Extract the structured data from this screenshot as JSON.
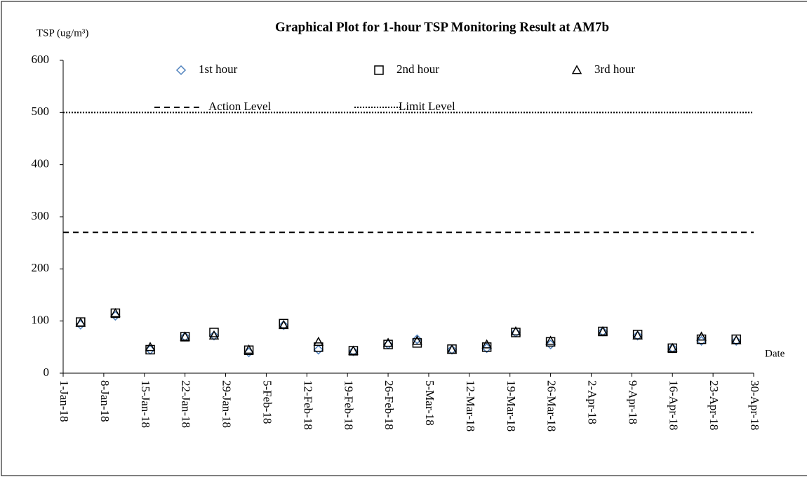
{
  "chart_data": {
    "type": "scatter",
    "title": "Graphical Plot for 1-hour TSP Monitoring Result at AM7b",
    "y_label": "TSP (ug/m³)",
    "x_label": "Date",
    "x": [
      "2018-01-04",
      "2018-01-10",
      "2018-01-16",
      "2018-01-22",
      "2018-01-27",
      "2018-02-02",
      "2018-02-08",
      "2018-02-14",
      "2018-02-20",
      "2018-02-26",
      "2018-03-03",
      "2018-03-09",
      "2018-03-15",
      "2018-03-20",
      "2018-03-26",
      "2018-04-04",
      "2018-04-10",
      "2018-04-16",
      "2018-04-21",
      "2018-04-27"
    ],
    "series": [
      {
        "name": "1st hour",
        "marker": "diamond",
        "color": "#4f81bd",
        "values": [
          93,
          110,
          45,
          70,
          72,
          40,
          92,
          45,
          42,
          55,
          65,
          45,
          48,
          78,
          55,
          80,
          72,
          48,
          62,
          62
        ]
      },
      {
        "name": "2nd hour",
        "marker": "square",
        "color": "#000000",
        "values": [
          98,
          115,
          45,
          70,
          78,
          44,
          95,
          50,
          43,
          55,
          58,
          46,
          50,
          78,
          60,
          80,
          74,
          48,
          65,
          65
        ]
      },
      {
        "name": "3rd hour",
        "marker": "triangle",
        "color": "#000000",
        "values": [
          97,
          115,
          50,
          70,
          72,
          45,
          92,
          60,
          43,
          58,
          62,
          45,
          55,
          80,
          62,
          80,
          72,
          48,
          70,
          63
        ]
      }
    ],
    "reference_lines": [
      {
        "name": "Action Level",
        "value": 270,
        "style": "dashed"
      },
      {
        "name": "Limit Level",
        "value": 500,
        "style": "dotted"
      }
    ],
    "xlim": [
      "2018-01-01",
      "2018-04-30"
    ],
    "xticks": [
      {
        "value": "2018-01-01",
        "label": "1-Jan-18"
      },
      {
        "value": "2018-01-08",
        "label": "8-Jan-18"
      },
      {
        "value": "2018-01-15",
        "label": "15-Jan-18"
      },
      {
        "value": "2018-01-22",
        "label": "22-Jan-18"
      },
      {
        "value": "2018-01-29",
        "label": "29-Jan-18"
      },
      {
        "value": "2018-02-05",
        "label": "5-Feb-18"
      },
      {
        "value": "2018-02-12",
        "label": "12-Feb-18"
      },
      {
        "value": "2018-02-19",
        "label": "19-Feb-18"
      },
      {
        "value": "2018-02-26",
        "label": "26-Feb-18"
      },
      {
        "value": "2018-03-05",
        "label": "5-Mar-18"
      },
      {
        "value": "2018-03-12",
        "label": "12-Mar-18"
      },
      {
        "value": "2018-03-19",
        "label": "19-Mar-18"
      },
      {
        "value": "2018-03-26",
        "label": "26-Mar-18"
      },
      {
        "value": "2018-04-02",
        "label": "2-Apr-18"
      },
      {
        "value": "2018-04-09",
        "label": "9-Apr-18"
      },
      {
        "value": "2018-04-16",
        "label": "16-Apr-18"
      },
      {
        "value": "2018-04-23",
        "label": "23-Apr-18"
      },
      {
        "value": "2018-04-30",
        "label": "30-Apr-18"
      }
    ],
    "ylim": [
      0,
      600
    ],
    "yticks": [
      0,
      100,
      200,
      300,
      400,
      500,
      600
    ]
  }
}
